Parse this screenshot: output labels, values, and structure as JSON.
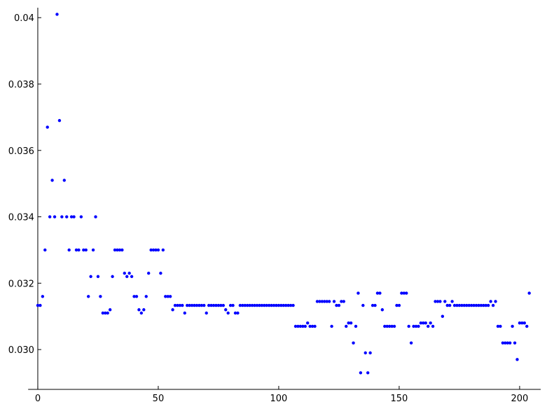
{
  "chart_data": {
    "type": "scatter",
    "color": "#0000ff",
    "xlim": [
      -4,
      207
    ],
    "ylim": [
      0.0288,
      0.0403
    ],
    "xticks": [
      0,
      50,
      100,
      150,
      200
    ],
    "yticks": [
      {
        "value": 0.03,
        "label": "0.030"
      },
      0.032,
      0.034,
      0.036,
      0.038,
      0.04
    ],
    "x": [
      0,
      1,
      2,
      3,
      4,
      5,
      6,
      7,
      8,
      9,
      10,
      11,
      12,
      13,
      14,
      15,
      16,
      17,
      18,
      19,
      20,
      21,
      22,
      23,
      24,
      25,
      26,
      27,
      28,
      29,
      30,
      31,
      32,
      33,
      34,
      35,
      36,
      37,
      38,
      39,
      40,
      41,
      42,
      43,
      44,
      45,
      46,
      47,
      48,
      49,
      50,
      51,
      52,
      53,
      54,
      55,
      56,
      57,
      58,
      59,
      60,
      61,
      62,
      63,
      64,
      65,
      66,
      67,
      68,
      69,
      70,
      71,
      72,
      73,
      74,
      75,
      76,
      77,
      78,
      79,
      80,
      81,
      82,
      83,
      84,
      85,
      86,
      87,
      88,
      89,
      90,
      91,
      92,
      93,
      94,
      95,
      96,
      97,
      98,
      99,
      100,
      101,
      102,
      103,
      104,
      105,
      106,
      107,
      108,
      109,
      110,
      111,
      112,
      113,
      114,
      115,
      116,
      117,
      118,
      119,
      120,
      121,
      122,
      123,
      124,
      125,
      126,
      127,
      128,
      129,
      130,
      131,
      132,
      133,
      134,
      135,
      136,
      137,
      138,
      139,
      140,
      141,
      142,
      143,
      144,
      145,
      146,
      147,
      148,
      149,
      150,
      151,
      152,
      153,
      154,
      155,
      156,
      157,
      158,
      159,
      160,
      161,
      162,
      163,
      164,
      165,
      166,
      167,
      168,
      169,
      170,
      171,
      172,
      173,
      174,
      175,
      176,
      177,
      178,
      179,
      180,
      181,
      182,
      183,
      184,
      185,
      186,
      187,
      188,
      189,
      190,
      191,
      192,
      193,
      194,
      195,
      196,
      197,
      198,
      199,
      200,
      201,
      202,
      203,
      204
    ],
    "values": [
      0.03133,
      0.03133,
      0.0316,
      0.033,
      0.0367,
      0.034,
      0.0351,
      0.034,
      0.0401,
      0.0369,
      0.034,
      0.0351,
      0.034,
      0.033,
      0.034,
      0.034,
      0.033,
      0.033,
      0.034,
      0.033,
      0.033,
      0.0316,
      0.0322,
      0.033,
      0.034,
      0.0322,
      0.0316,
      0.0311,
      0.0311,
      0.0311,
      0.0312,
      0.0322,
      0.033,
      0.033,
      0.033,
      0.033,
      0.0323,
      0.0322,
      0.0323,
      0.0322,
      0.0316,
      0.0316,
      0.0312,
      0.0311,
      0.0312,
      0.0316,
      0.0323,
      0.033,
      0.033,
      0.033,
      0.033,
      0.0323,
      0.033,
      0.0316,
      0.0316,
      0.0316,
      0.0312,
      0.03133,
      0.03133,
      0.03133,
      0.03133,
      0.0311,
      0.03133,
      0.03133,
      0.03133,
      0.03133,
      0.03133,
      0.03133,
      0.03133,
      0.03133,
      0.0311,
      0.03133,
      0.03133,
      0.03133,
      0.03133,
      0.03133,
      0.03133,
      0.03133,
      0.0312,
      0.0311,
      0.03133,
      0.03133,
      0.0311,
      0.0311,
      0.03133,
      0.03133,
      0.03133,
      0.03133,
      0.03133,
      0.03133,
      0.03133,
      0.03133,
      0.03133,
      0.03133,
      0.03133,
      0.03133,
      0.03133,
      0.03133,
      0.03133,
      0.03133,
      0.03133,
      0.03133,
      0.03133,
      0.03133,
      0.03133,
      0.03133,
      0.03133,
      0.0307,
      0.0307,
      0.0307,
      0.0307,
      0.0307,
      0.0308,
      0.0307,
      0.0307,
      0.0307,
      0.03145,
      0.03145,
      0.03145,
      0.03145,
      0.03145,
      0.03145,
      0.0307,
      0.03145,
      0.03133,
      0.03133,
      0.03145,
      0.03145,
      0.0307,
      0.0308,
      0.0308,
      0.0302,
      0.0307,
      0.0317,
      0.0293,
      0.03133,
      0.0299,
      0.0293,
      0.0299,
      0.03133,
      0.03133,
      0.0317,
      0.0317,
      0.0312,
      0.0307,
      0.0307,
      0.0307,
      0.0307,
      0.0307,
      0.03133,
      0.03133,
      0.0317,
      0.0317,
      0.0317,
      0.0307,
      0.0302,
      0.0307,
      0.0307,
      0.0307,
      0.0308,
      0.0308,
      0.0308,
      0.0307,
      0.0308,
      0.0307,
      0.03145,
      0.03145,
      0.03145,
      0.031,
      0.03145,
      0.03133,
      0.03133,
      0.03145,
      0.03133,
      0.03133,
      0.03133,
      0.03133,
      0.03133,
      0.03133,
      0.03133,
      0.03133,
      0.03133,
      0.03133,
      0.03133,
      0.03133,
      0.03133,
      0.03133,
      0.03133,
      0.03145,
      0.03133,
      0.03145,
      0.0307,
      0.0307,
      0.0302,
      0.0302,
      0.0302,
      0.0302,
      0.0307,
      0.0302,
      0.0297,
      0.0308,
      0.0308,
      0.0308,
      0.0307,
      0.0317
    ]
  }
}
